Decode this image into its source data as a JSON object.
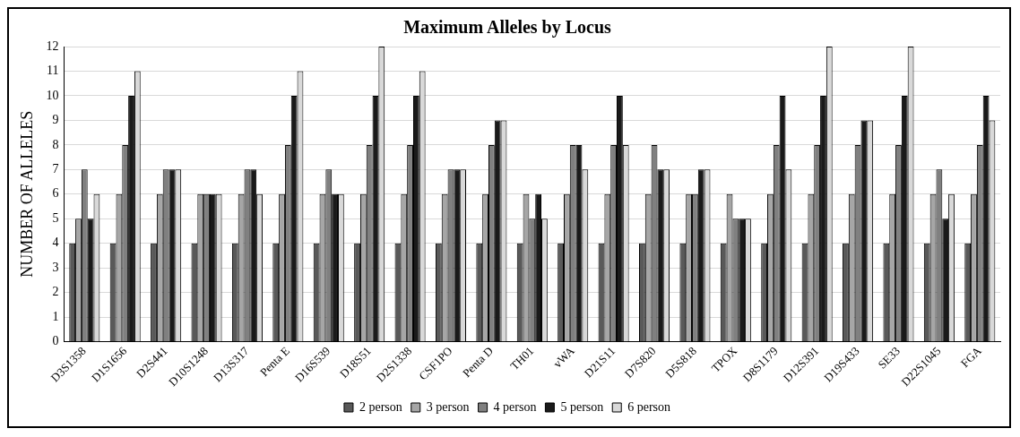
{
  "chart_data": {
    "type": "bar",
    "title": "Maximum Alleles by Locus",
    "ylabel": "NUMBER OF ALLELES",
    "categories": [
      "D3S1358",
      "D1S1656",
      "D2S441",
      "D10S1248",
      "D13S317",
      "Penta E",
      "D16S539",
      "D18S51",
      "D2S1338",
      "CSF1PO",
      "Penta D",
      "TH01",
      "vWA",
      "D21S11",
      "D7S820",
      "D5S818",
      "TPOX",
      "D8S1179",
      "D12S391",
      "D19S433",
      "SE33",
      "D22S1045",
      "FGA"
    ],
    "series": [
      {
        "name": "2 person",
        "color": "#595959",
        "values": [
          4,
          4,
          4,
          4,
          4,
          4,
          4,
          4,
          4,
          4,
          4,
          4,
          4,
          4,
          4,
          4,
          4,
          4,
          4,
          4,
          4,
          4,
          4
        ]
      },
      {
        "name": "3 person",
        "color": "#a6a6a6",
        "values": [
          5,
          6,
          6,
          6,
          6,
          6,
          6,
          6,
          6,
          6,
          6,
          6,
          6,
          6,
          6,
          6,
          6,
          6,
          6,
          6,
          6,
          6,
          6
        ]
      },
      {
        "name": "4 person",
        "color": "#808080",
        "values": [
          7,
          8,
          7,
          6,
          7,
          8,
          7,
          8,
          8,
          7,
          8,
          5,
          8,
          8,
          8,
          6,
          5,
          8,
          8,
          8,
          8,
          7,
          8
        ]
      },
      {
        "name": "5 person",
        "color": "#1a1a1a",
        "values": [
          5,
          10,
          7,
          6,
          7,
          10,
          6,
          10,
          10,
          7,
          9,
          6,
          8,
          10,
          7,
          7,
          5,
          10,
          10,
          9,
          10,
          5,
          10
        ]
      },
      {
        "name": "6 person",
        "color": "#d9d9d9",
        "values": [
          6,
          11,
          7,
          6,
          6,
          11,
          6,
          12,
          11,
          7,
          9,
          5,
          7,
          8,
          7,
          7,
          5,
          7,
          12,
          9,
          12,
          6,
          9
        ]
      }
    ],
    "ylim": [
      0,
      12
    ],
    "yticks": [
      0,
      1,
      2,
      3,
      4,
      5,
      6,
      7,
      8,
      9,
      10,
      11,
      12
    ],
    "grid": "y",
    "legend": "bottom"
  }
}
